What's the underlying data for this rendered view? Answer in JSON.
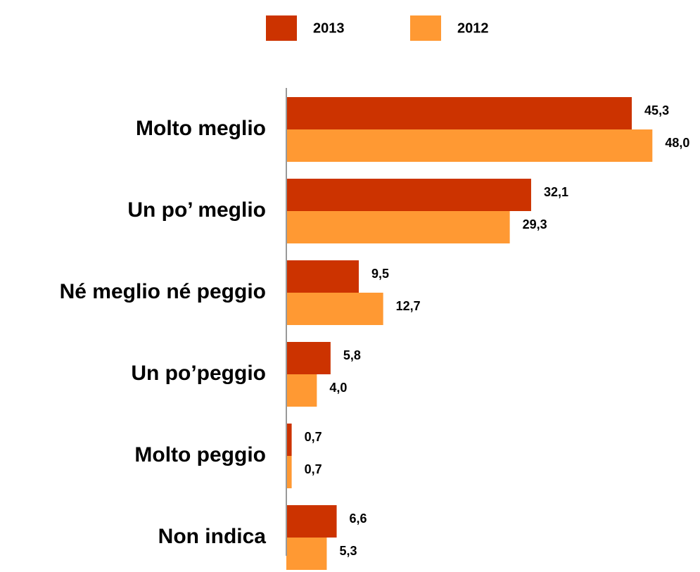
{
  "chart_data": {
    "type": "bar",
    "orientation": "horizontal",
    "categories": [
      "Molto meglio",
      "Un po’ meglio",
      "Né meglio né peggio",
      "Un po’peggio",
      "Molto peggio",
      "Non indica"
    ],
    "series": [
      {
        "name": "2013",
        "color": "#cc3300",
        "values": [
          45.3,
          32.1,
          9.5,
          5.8,
          0.7,
          6.6
        ],
        "value_labels": [
          "45,3",
          "32,1",
          "9,5",
          "5,8",
          "0,7",
          "6,6"
        ]
      },
      {
        "name": "2012",
        "color": "#ff9933",
        "values": [
          48.0,
          29.3,
          12.7,
          4.0,
          0.7,
          5.3
        ],
        "value_labels": [
          "48,0",
          "29,3",
          "12,7",
          "4,0",
          "0,7",
          "5,3"
        ]
      }
    ],
    "xlim": [
      0,
      50
    ],
    "legend": "top"
  }
}
